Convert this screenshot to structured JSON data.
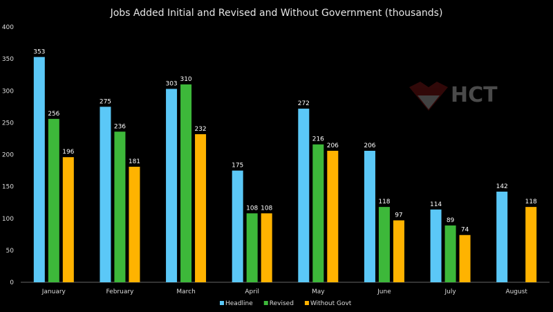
{
  "chart_data": {
    "type": "bar",
    "title": "Jobs Added Initial and Revised and Without Government (thousands)",
    "xlabel": "",
    "ylabel": "",
    "ylim": [
      0,
      400
    ],
    "yticks": [
      0,
      50,
      100,
      150,
      200,
      250,
      300,
      350,
      400
    ],
    "categories": [
      "January",
      "February",
      "March",
      "April",
      "May",
      "June",
      "July",
      "August"
    ],
    "series": [
      {
        "name": "Headline",
        "color": "#5bc8f7",
        "values": [
          353,
          275,
          303,
          175,
          272,
          206,
          114,
          142
        ]
      },
      {
        "name": "Revised",
        "color": "#3db83a",
        "values": [
          256,
          236,
          310,
          108,
          216,
          118,
          89,
          null
        ]
      },
      {
        "name": "Without Govt",
        "color": "#ffb300",
        "values": [
          196,
          181,
          232,
          108,
          206,
          97,
          74,
          118
        ]
      }
    ],
    "grid": false,
    "legend": "bottom-center",
    "watermark": "HCT"
  }
}
